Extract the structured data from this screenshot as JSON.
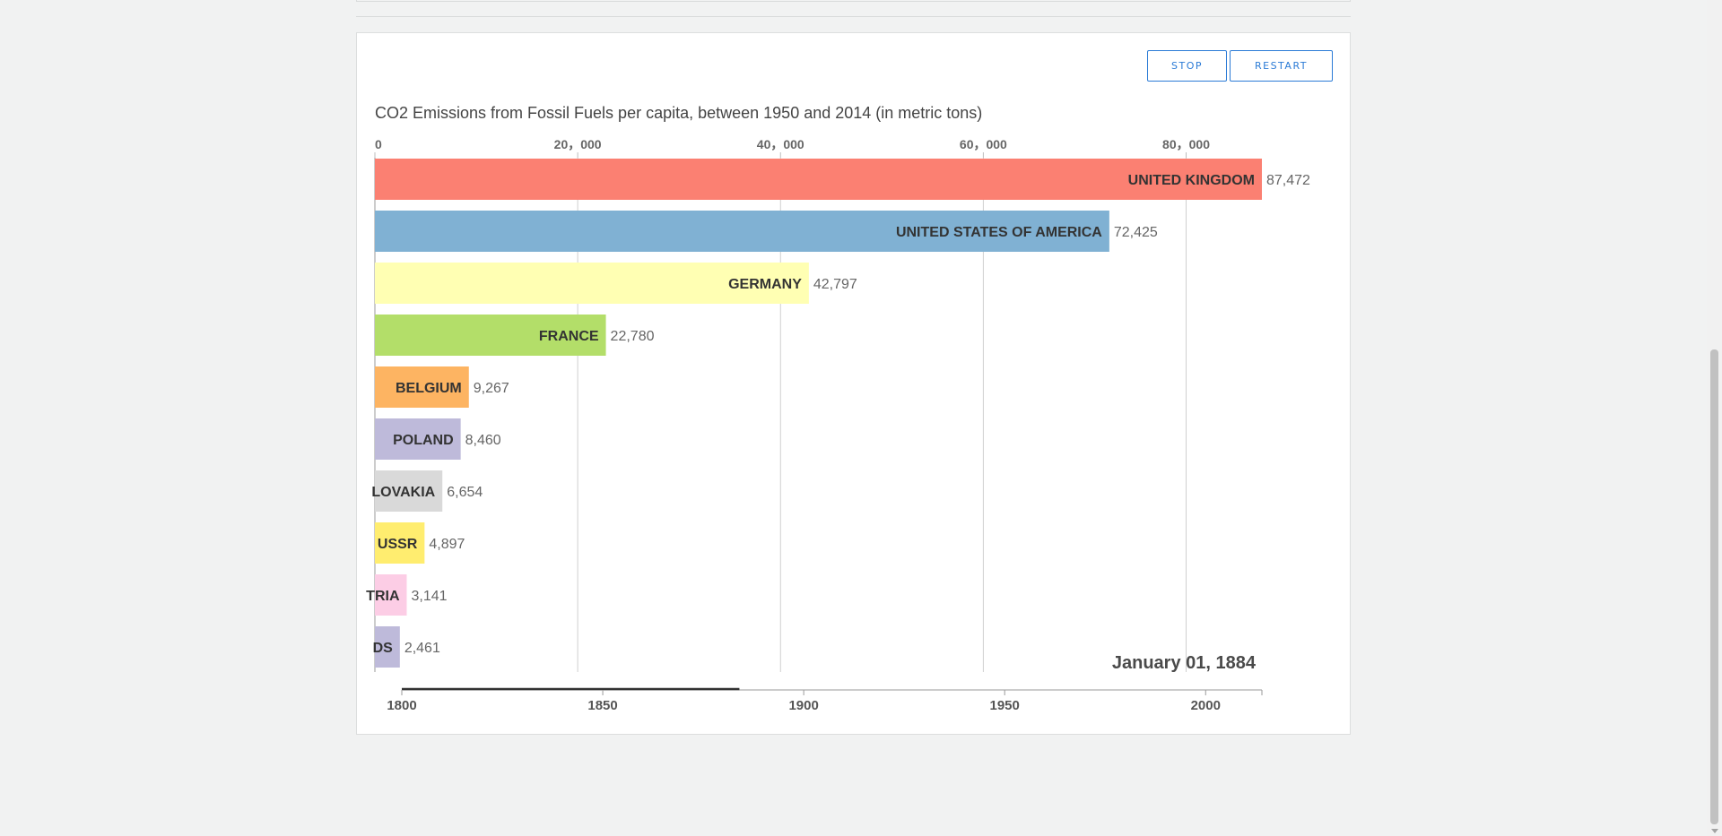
{
  "controls": {
    "stop_label": "STOP",
    "restart_label": "RESTART"
  },
  "chart_data": {
    "type": "bar",
    "orientation": "horizontal",
    "title": "CO2 Emissions from Fossil Fuels per capita, between 1950 and 2014 (in metric tons)",
    "xlim": [
      0,
      87472
    ],
    "x_ticks": [
      0,
      20000,
      40000,
      60000,
      80000
    ],
    "x_tick_labels": [
      "0",
      "20，000",
      "40，000",
      "60，000",
      "80，000"
    ],
    "grid": true,
    "categories": [
      "UNITED KINGDOM",
      "UNITED STATES OF AMERICA",
      "GERMANY",
      "FRANCE",
      "BELGIUM",
      "POLAND",
      "LOVAKIA",
      "USSR",
      "TRIA",
      "DS"
    ],
    "values": [
      87472,
      72425,
      42797,
      22780,
      9267,
      8460,
      6654,
      4897,
      3141,
      2461
    ],
    "value_labels": [
      "87,472",
      "72,425",
      "42,797",
      "22,780",
      "9,267",
      "8,460",
      "6,654",
      "4,897",
      "3,141",
      "2,461"
    ],
    "colors": [
      "#fb8072",
      "#80b1d3",
      "#ffffb3",
      "#b3de69",
      "#fdb462",
      "#bebada",
      "#d9d9d9",
      "#ffed6f",
      "#fccde5",
      "#bebada"
    ],
    "date_label": "January 01, 1884",
    "timeline": {
      "range": [
        1800,
        2014
      ],
      "current": 1884,
      "ticks": [
        1800,
        1850,
        1900,
        1950,
        2000
      ],
      "tick_labels": [
        "1800",
        "1850",
        "1900",
        "1950",
        "2000"
      ]
    }
  }
}
